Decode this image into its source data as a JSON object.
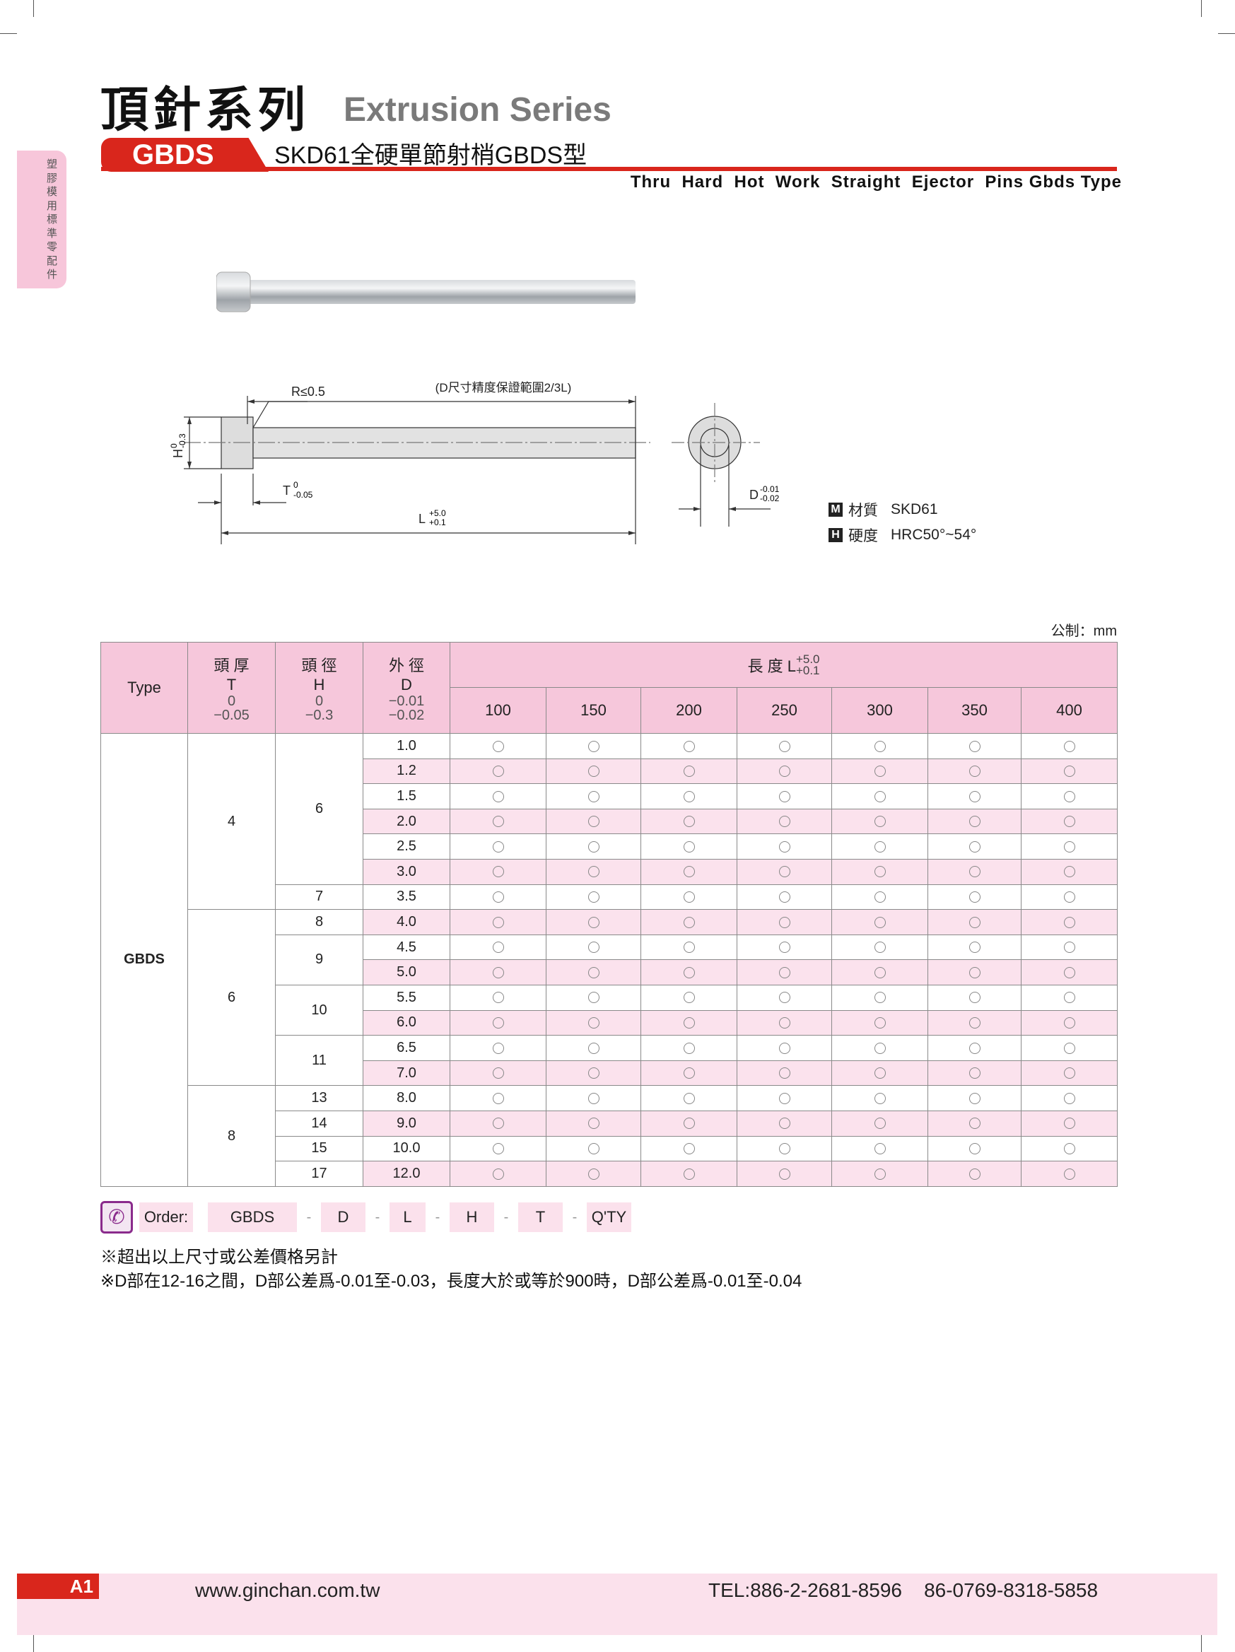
{
  "header": {
    "title_cn": "頂針系列",
    "title_en": "Extrusion Series",
    "badge": "GBDS",
    "subtitle_cn": "SKD61全硬單節射梢GBDS型",
    "subtitle_en": "Thru  Hard  Hot  Work  Straight  Ejector  Pins Gbds Type"
  },
  "sidebar": {
    "label": "塑膠模用標準零配件"
  },
  "drawing": {
    "range_label": "(D尺寸精度保證範圍2/3L)",
    "radius_label": "R≤0.5",
    "h_label": "H",
    "h_tol": [
      "0",
      "-0.3"
    ],
    "t_label": "T",
    "t_tol": [
      "0",
      "-0.05"
    ],
    "l_label": "L",
    "l_tol": [
      "+5.0",
      "+0.1"
    ],
    "d_label": "D",
    "d_tol": [
      "-0.01",
      "-0.02"
    ]
  },
  "material": {
    "m_icon": "M",
    "m_label": "材質",
    "m_value": "SKD61",
    "h_icon": "H",
    "h_label": "硬度",
    "h_value": "HRC50°~54°"
  },
  "unit": "公制：mm",
  "table": {
    "headers": {
      "type": "Type",
      "t": [
        "頭 厚",
        "T",
        "0",
        "−0.05"
      ],
      "h": [
        "頭 徑",
        "H",
        "0",
        "−0.3"
      ],
      "d": [
        "外 徑",
        "D",
        "−0.01",
        "−0.02"
      ],
      "length": "長 度 L",
      "length_tol": [
        "+5.0",
        "+0.1"
      ],
      "lengths": [
        "100",
        "150",
        "200",
        "250",
        "300",
        "350",
        "400"
      ]
    },
    "type": "GBDS",
    "t_groups": [
      {
        "value": "4",
        "span": 7
      },
      {
        "value": "6",
        "span": 7
      },
      {
        "value": "8",
        "span": 4
      }
    ],
    "h_groups": [
      {
        "value": "6",
        "span": 6
      },
      {
        "value": "7",
        "span": 1
      },
      {
        "value": "8",
        "span": 1
      },
      {
        "value": "9",
        "span": 2
      },
      {
        "value": "10",
        "span": 2
      },
      {
        "value": "11",
        "span": 2
      },
      {
        "value": "13",
        "span": 1
      },
      {
        "value": "14",
        "span": 1
      },
      {
        "value": "15",
        "span": 1
      },
      {
        "value": "17",
        "span": 1
      }
    ],
    "d_values": [
      "1.0",
      "1.2",
      "1.5",
      "2.0",
      "2.5",
      "3.0",
      "3.5",
      "4.0",
      "4.5",
      "5.0",
      "5.5",
      "6.0",
      "6.5",
      "7.0",
      "8.0",
      "9.0",
      "10.0",
      "12.0"
    ],
    "availability_mark": "○"
  },
  "order": {
    "icon": "phone-icon",
    "label": "Order:",
    "parts": [
      "GBDS",
      "D",
      "L",
      "H",
      "T",
      "Q'TY"
    ],
    "separator": "-"
  },
  "notes": [
    "※超出以上尺寸或公差價格另計",
    "※D部在12-16之間，D部公差爲-0.01至-0.03，長度大於或等於900時，D部公差爲-0.01至-0.04"
  ],
  "footer": {
    "page": "A1",
    "url": "www.ginchan.com.tw",
    "tel": "TEL:886-2-2681-8596    86-0769-8318-5858"
  },
  "colors": {
    "accent": "#d9261c",
    "pink_header": "#f6c7db",
    "pink_row": "#fbe2ed",
    "order_icon": "#8a2b8c"
  }
}
